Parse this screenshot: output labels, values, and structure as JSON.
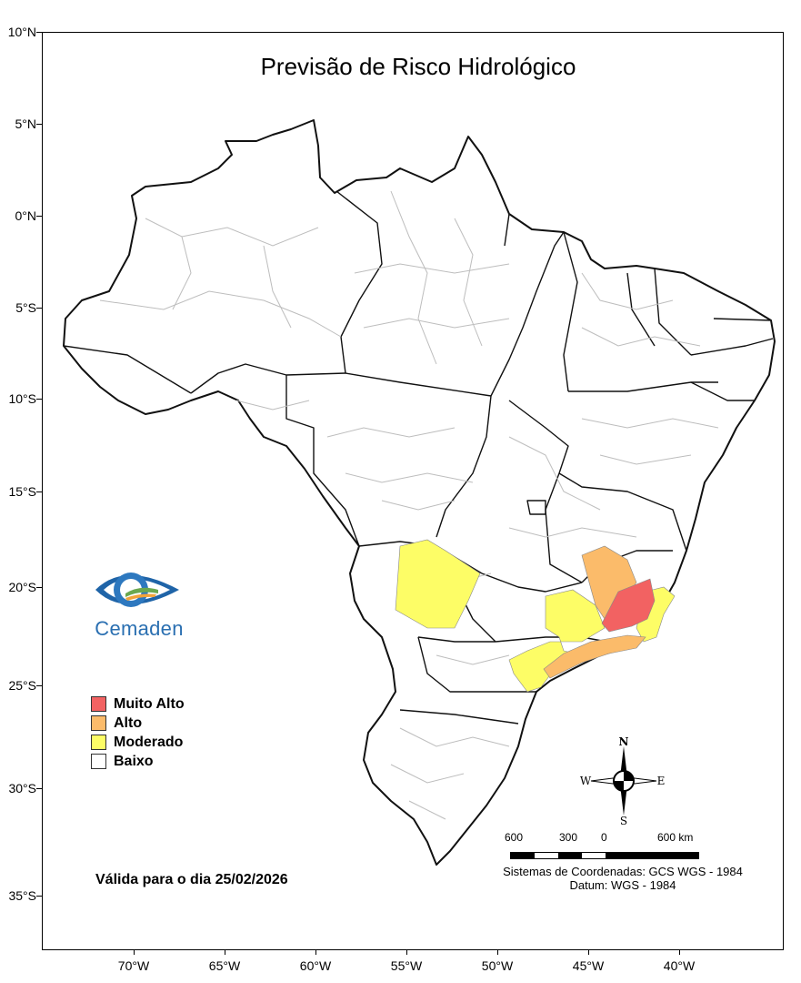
{
  "title": "Previsão de Risco Hidrológico",
  "lat_ticks": [
    "10°N",
    "5°N",
    "0°N",
    "5°S",
    "10°S",
    "15°S",
    "20°S",
    "25°S",
    "30°S",
    "35°S"
  ],
  "lon_ticks": [
    "70°W",
    "65°W",
    "60°W",
    "55°W",
    "50°W",
    "45°W",
    "40°W"
  ],
  "logo": {
    "text": "Cemaden"
  },
  "legend": [
    {
      "label": "Muito Alto",
      "color": "#f26262"
    },
    {
      "label": "Alto",
      "color": "#fbbb6a"
    },
    {
      "label": "Moderado",
      "color": "#fdfd66"
    },
    {
      "label": "Baixo",
      "color": "#ffffff"
    }
  ],
  "validity": "Válida para o dia 25/02/2026",
  "scale": {
    "labels": [
      "600",
      "300",
      "0",
      "600 km"
    ]
  },
  "coordinate_system": "Sistemas de Coordenadas: GCS WGS - 1984",
  "datum": "Datum: WGS - 1984",
  "compass": {
    "n": "N",
    "s": "S",
    "e": "E",
    "w": "W"
  }
}
